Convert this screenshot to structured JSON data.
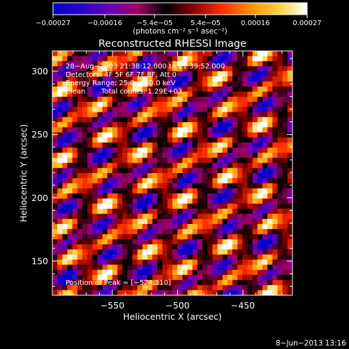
{
  "chart_data": {
    "type": "heatmap",
    "title": "Reconstructed RHESSI Image",
    "xlabel": "Heliocentric X (arcsec)",
    "ylabel": "Heliocentric Y (arcsec)",
    "x_range": [
      -596,
      -412
    ],
    "y_range": [
      123,
      316
    ],
    "x_ticks": [
      -550,
      -500,
      -450
    ],
    "x_tick_labels": [
      "−550",
      "−500",
      "−450"
    ],
    "y_ticks": [
      150,
      200,
      250,
      300
    ],
    "y_tick_labels": [
      "150",
      "200",
      "250",
      "300"
    ],
    "colorbar": {
      "range": [
        -0.00027,
        0.00027
      ],
      "ticks": [
        -0.00027,
        -0.00016,
        -5.4e-05,
        5.4e-05,
        0.00016,
        0.00027
      ],
      "tick_labels": [
        "−0.00027",
        "−0.00016",
        "−5.4e−05",
        "5.4e−05",
        "0.00016",
        "0.00027"
      ],
      "unit_label": "(photons cm⁻² s⁻¹ asec⁻²)",
      "colors": [
        "#0000c8",
        "#2a00c8",
        "#6a00b8",
        "#a00060",
        "#000000",
        "#8c0000",
        "#ff3000",
        "#ff9000",
        "#ffd040",
        "#ffffff"
      ]
    },
    "annotations": [
      "28−Aug−2003 21:38:12.000 to 21:39:52.000",
      "Detectors: 4F 5F 6F 7F 8F, Att 0",
      "Energy Range: 25.0 − 50.0 keV",
      "Clean",
      "Total counts: 1.29E+03"
    ],
    "peak_label": "Position of Peak = [−524,310]",
    "peak": [
      -524,
      310
    ],
    "marker": [
      -448,
      177
    ],
    "footer": "8−Jun−2013 13:16",
    "pattern": {
      "description_free": true,
      "fringe_angle_deg": 28,
      "fringe_period_arcsec": 24
    }
  }
}
